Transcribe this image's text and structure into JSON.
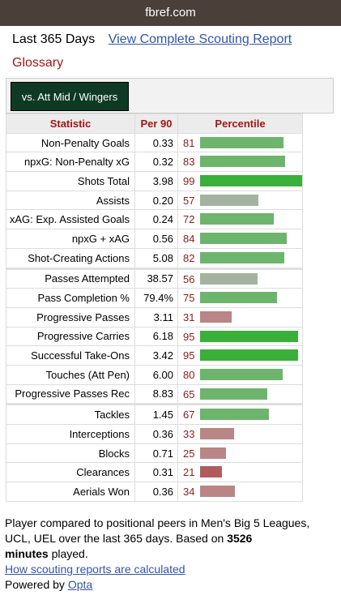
{
  "browser": {
    "url": "fbref.com"
  },
  "header": {
    "period": "Last 365 Days",
    "full_report_link": "View Complete Scouting Report",
    "glossary_link": "Glossary"
  },
  "filter": {
    "active_button": "vs. Att Mid / Wingers"
  },
  "table": {
    "headers": {
      "statistic": "Statistic",
      "per90": "Per 90",
      "percentile": "Percentile"
    },
    "groups": [
      [
        {
          "stat": "Non-Penalty Goals",
          "per90": "0.33",
          "percentile": 81
        },
        {
          "stat": "npxG: Non-Penalty xG",
          "per90": "0.32",
          "percentile": 83
        },
        {
          "stat": "Shots Total",
          "per90": "3.98",
          "percentile": 99
        },
        {
          "stat": "Assists",
          "per90": "0.20",
          "percentile": 57
        },
        {
          "stat": "xAG: Exp. Assisted Goals",
          "per90": "0.24",
          "percentile": 72
        },
        {
          "stat": "npxG + xAG",
          "per90": "0.56",
          "percentile": 84
        },
        {
          "stat": "Shot-Creating Actions",
          "per90": "5.08",
          "percentile": 82
        }
      ],
      [
        {
          "stat": "Passes Attempted",
          "per90": "38.57",
          "percentile": 56
        },
        {
          "stat": "Pass Completion %",
          "per90": "79.4%",
          "percentile": 75
        },
        {
          "stat": "Progressive Passes",
          "per90": "3.11",
          "percentile": 31
        },
        {
          "stat": "Progressive Carries",
          "per90": "6.18",
          "percentile": 95
        },
        {
          "stat": "Successful Take-Ons",
          "per90": "3.42",
          "percentile": 95
        },
        {
          "stat": "Touches (Att Pen)",
          "per90": "6.00",
          "percentile": 80
        },
        {
          "stat": "Progressive Passes Rec",
          "per90": "8.83",
          "percentile": 65
        }
      ],
      [
        {
          "stat": "Tackles",
          "per90": "1.45",
          "percentile": 67
        },
        {
          "stat": "Interceptions",
          "per90": "0.36",
          "percentile": 33
        },
        {
          "stat": "Blocks",
          "per90": "0.71",
          "percentile": 25
        },
        {
          "stat": "Clearances",
          "per90": "0.31",
          "percentile": 21
        },
        {
          "stat": "Aerials Won",
          "per90": "0.36",
          "percentile": 34
        }
      ]
    ]
  },
  "colors": {
    "high": "#3aaf3a",
    "mid_green": "#6db56d",
    "neutral": "#a3b39f",
    "low": "#b98585",
    "lowest": "#b05c5c"
  },
  "footer": {
    "text_before": "Player compared to positional peers in Men's Big 5 Leagues, UCL, UEL over the last 365 days. Based on ",
    "minutes": "3526",
    "minutes_label": "minutes",
    "text_after": " played.",
    "how_link": "How scouting reports are calculated",
    "powered_by": "Powered by ",
    "opta_link": "Opta"
  }
}
